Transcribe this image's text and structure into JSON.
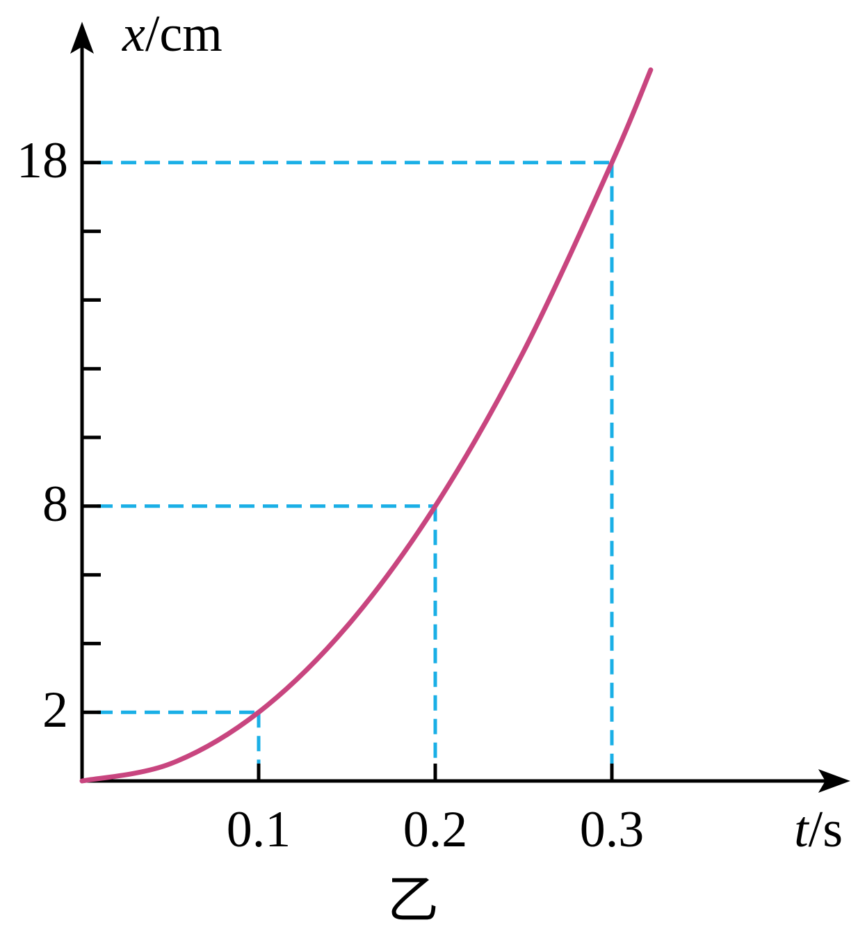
{
  "chart_data": {
    "type": "line",
    "ylabel": {
      "var": "x",
      "unit": "/cm"
    },
    "xlabel": {
      "var": "t",
      "unit": "/s"
    },
    "caption": "乙",
    "x": [
      0,
      0.05,
      0.1,
      0.15,
      0.2,
      0.25,
      0.3,
      0.322
    ],
    "series": [
      {
        "color": "#c8457f",
        "values": [
          0,
          0.5,
          2,
          4.5,
          8,
          12.5,
          18,
          20.7
        ]
      }
    ],
    "guides": {
      "color": "#1aafe6",
      "x": [
        0.1,
        0.2,
        0.3
      ],
      "y": [
        2,
        8,
        18
      ]
    },
    "xlim": [
      0,
      0.435
    ],
    "ylim": [
      0,
      22.1
    ],
    "xticks": [
      0.1,
      0.2,
      0.3
    ],
    "yticks": [
      2,
      8,
      18
    ],
    "yminor_ticks": [
      4,
      6,
      10,
      12,
      14,
      16
    ]
  }
}
